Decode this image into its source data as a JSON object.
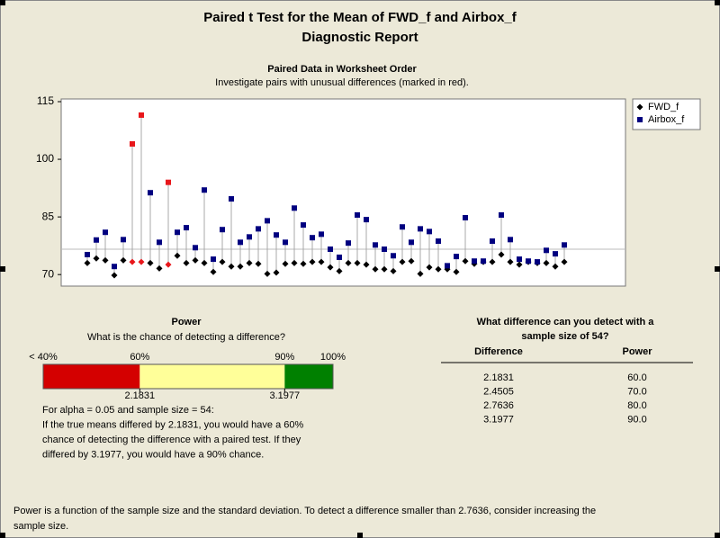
{
  "header": {
    "title": "Paired t Test for the Mean of FWD_f and Airbox_f",
    "subtitle": "Diagnostic Report"
  },
  "chart_data": {
    "type": "scatter",
    "title": "Paired Data in Worksheet Order",
    "subtitle": "Investigate pairs with unusual differences (marked in red).",
    "ylim": [
      67,
      115.7
    ],
    "yticks": [
      70,
      85,
      100,
      115
    ],
    "reference_line": 76.6,
    "connector_color": "#a8a8a8",
    "unusual": [
      5,
      6,
      9
    ],
    "unusual_color": "#e8171b",
    "series": [
      {
        "name": "FWD_f",
        "color": "#000000",
        "marker": "diamond",
        "values": [
          73,
          74.2,
          73.7,
          69.8,
          73.7,
          73.3,
          73.3,
          73,
          71.6,
          72.6,
          74.9,
          73,
          73.7,
          73,
          70.7,
          73.3,
          72.1,
          72.1,
          73,
          72.8,
          70.2,
          70.5,
          72.8,
          73,
          72.8,
          73.3,
          73.3,
          71.9,
          70.9,
          73,
          73,
          72.6,
          71.4,
          71.4,
          70.9,
          73.3,
          73.5,
          70.2,
          71.9,
          71.4,
          71.4,
          70.7,
          73.5,
          72.8,
          73.3,
          73.3,
          75.2,
          73.3,
          72.6,
          73.3,
          73,
          73,
          72.1,
          73.3
        ]
      },
      {
        "name": "Airbox_f",
        "color": "#000080",
        "marker": "square",
        "values": [
          75.2,
          79,
          81,
          72.1,
          79.1,
          104,
          111.5,
          91.3,
          78.4,
          94,
          81,
          82.2,
          77,
          92,
          74,
          81.7,
          89.7,
          78.4,
          79.8,
          81.9,
          84,
          80.3,
          78.4,
          87.3,
          82.9,
          79.6,
          80.5,
          76.6,
          74.5,
          78.2,
          85.5,
          84.3,
          77.7,
          76.6,
          74.9,
          82.4,
          78.4,
          81.9,
          81.2,
          78.7,
          72.3,
          74.7,
          84.8,
          73.5,
          73.5,
          78.7,
          85.5,
          79.1,
          74,
          73.5,
          73.3,
          76.3,
          75.4,
          77.7
        ]
      }
    ]
  },
  "power": {
    "title": "Power",
    "subtitle": "What is the chance of detecting a difference?",
    "lim": [
      40,
      100
    ],
    "ticks": [
      {
        "value": 40,
        "label": "< 40%"
      },
      {
        "value": 60,
        "label": "60%"
      },
      {
        "value": 90,
        "label": "90%"
      },
      {
        "value": 100,
        "label": "100%"
      }
    ],
    "band_colors": [
      "#d40000",
      "#ffff99",
      "#008000"
    ],
    "differences": [
      {
        "power": 60,
        "label": "2.1831"
      },
      {
        "power": 90,
        "label": "3.1977"
      }
    ],
    "note": [
      "For alpha = 0.05 and sample size = 54:",
      "If the true means differed by 2.1831, you would have a 60%",
      "chance of detecting the difference with a paired test. If they",
      "differed by 3.1977, you would have a 90% chance."
    ]
  },
  "table": {
    "title": [
      "What difference can you detect with a",
      "sample size of 54?"
    ],
    "columns": [
      "Difference",
      "Power"
    ],
    "rows": [
      [
        "2.1831",
        "60.0"
      ],
      [
        "2.4505",
        "70.0"
      ],
      [
        "2.7636",
        "80.0"
      ],
      [
        "3.1977",
        "90.0"
      ]
    ]
  },
  "footer": [
    "Power is a function of the sample size and the standard deviation. To detect a difference smaller than 2.7636, consider increasing the",
    "sample size."
  ]
}
